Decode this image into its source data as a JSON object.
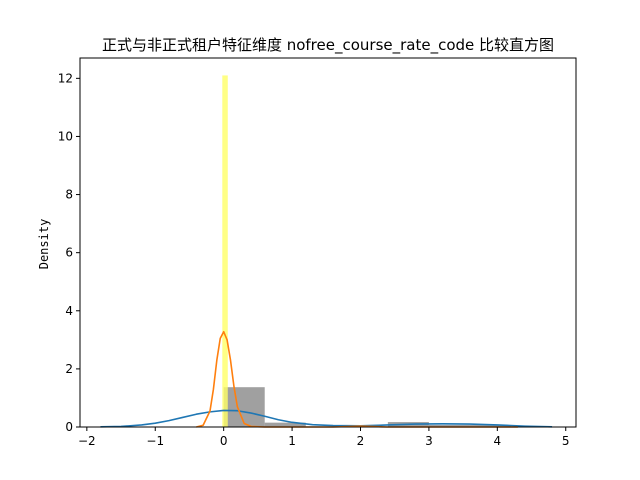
{
  "chart_data": {
    "type": "bar",
    "title": "正式与非正式租户特征维度 nofree_course_rate_code 比较直方图",
    "xlabel": "",
    "ylabel": "Density",
    "xlim": [
      -2.1,
      5.15
    ],
    "ylim": [
      0,
      12.7
    ],
    "x_ticks": [
      -2,
      -1,
      0,
      1,
      2,
      3,
      4,
      5
    ],
    "y_ticks": [
      0,
      2,
      4,
      6,
      8,
      10,
      12
    ],
    "grid": false,
    "legend": "none",
    "series": [
      {
        "kind": "histogram",
        "color": "#808080",
        "opacity": 0.75,
        "bins": [
          {
            "x0": 0.0,
            "x1": 0.6,
            "density": 1.37
          },
          {
            "x0": 0.6,
            "x1": 1.2,
            "density": 0.15
          },
          {
            "x0": 1.2,
            "x1": 1.8,
            "density": 0.02
          },
          {
            "x0": 1.8,
            "x1": 2.4,
            "density": 0.0
          },
          {
            "x0": 2.4,
            "x1": 3.0,
            "density": 0.17
          },
          {
            "x0": 3.0,
            "x1": 3.6,
            "density": 0.07
          },
          {
            "x0": 3.6,
            "x1": 4.2,
            "density": 0.07
          }
        ]
      },
      {
        "kind": "histogram",
        "color": "#ffff66",
        "opacity": 0.8,
        "bins": [
          {
            "x0": -0.02,
            "x1": 0.06,
            "density": 12.1
          },
          {
            "x0": 1.96,
            "x1": 2.04,
            "density": 0.05
          }
        ]
      },
      {
        "kind": "kde",
        "color": "#1f77b4",
        "x": [
          -1.8,
          -1.5,
          -1.2,
          -1.0,
          -0.8,
          -0.6,
          -0.4,
          -0.2,
          0.0,
          0.2,
          0.4,
          0.6,
          0.8,
          1.0,
          1.3,
          1.6,
          2.0,
          2.4,
          2.8,
          3.2,
          3.6,
          4.0,
          4.4,
          4.8
        ],
        "y": [
          0.005,
          0.02,
          0.07,
          0.13,
          0.22,
          0.33,
          0.44,
          0.52,
          0.57,
          0.56,
          0.48,
          0.37,
          0.25,
          0.16,
          0.08,
          0.05,
          0.04,
          0.07,
          0.1,
          0.11,
          0.1,
          0.07,
          0.03,
          0.005
        ]
      },
      {
        "kind": "kde",
        "color": "#ff7f0e",
        "x": [
          -0.4,
          -0.3,
          -0.2,
          -0.15,
          -0.1,
          -0.05,
          0.0,
          0.05,
          0.1,
          0.15,
          0.2,
          0.3,
          0.4,
          0.6,
          1.0,
          1.6,
          2.0,
          2.4,
          3.0,
          3.6,
          4.3
        ],
        "y": [
          0.0,
          0.06,
          0.55,
          1.3,
          2.3,
          3.05,
          3.28,
          3.0,
          2.3,
          1.4,
          0.7,
          0.12,
          0.02,
          0.0,
          0.0,
          0.0,
          0.03,
          0.0,
          0.0,
          0.0,
          0.0
        ]
      }
    ]
  }
}
